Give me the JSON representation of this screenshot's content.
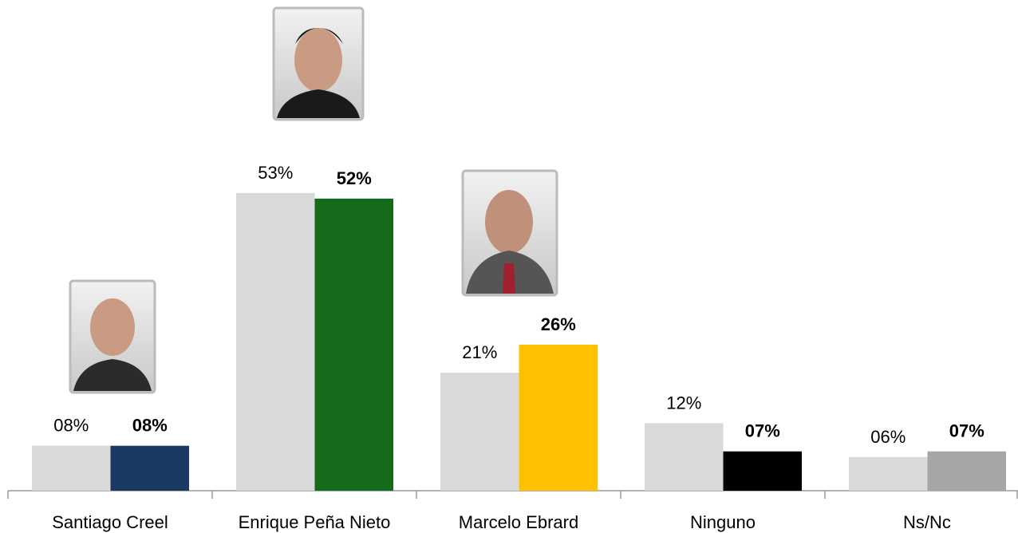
{
  "chart_data": {
    "type": "bar",
    "categories": [
      "Santiago Creel",
      "Enrique Peña Nieto",
      "Marcelo Ebrard",
      "Ninguno",
      "Ns/Nc"
    ],
    "series": [
      {
        "color": "#d9d9d9",
        "values": [
          8,
          53,
          21,
          12,
          6
        ],
        "value_labels": [
          "08%",
          "53%",
          "21%",
          "12%",
          "06%"
        ]
      },
      {
        "colors": [
          "#1b3a63",
          "#146b1a",
          "#ffc000",
          "#000000",
          "#a6a6a6"
        ],
        "values": [
          8,
          52,
          26,
          7,
          7
        ],
        "value_labels": [
          "08%",
          "52%",
          "26%",
          "07%",
          "07%"
        ],
        "bold_labels": true
      }
    ]
  }
}
